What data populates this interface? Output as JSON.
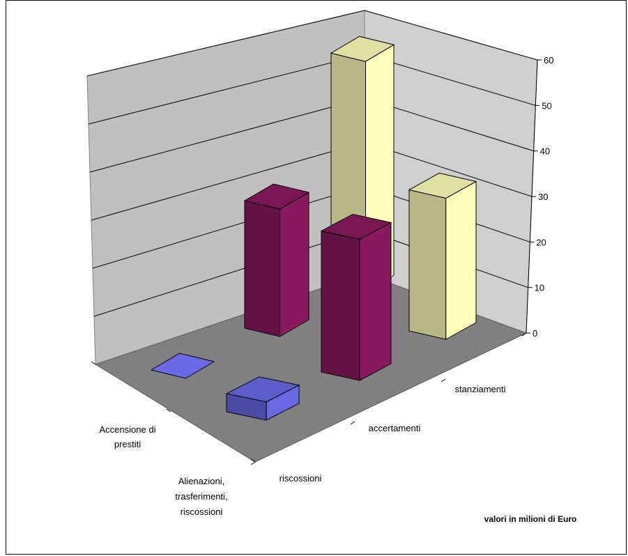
{
  "chart_data": {
    "type": "bar",
    "subtype": "3d-column",
    "title": "",
    "categories": [
      "riscossioni",
      "accertamenti",
      "stanziamenti"
    ],
    "series": [
      {
        "name": "Alienazioni, trasferimenti, riscossioni",
        "values": [
          4,
          31,
          31
        ],
        "color": "#6A6AE6"
      },
      {
        "name": "Accensione di prestiti",
        "values": [
          0,
          28,
          61
        ],
        "color": "#FFFFBB"
      }
    ],
    "series_colors": {
      "Alienazioni, trasferimenti, riscossioni": [
        "#6A6AE6",
        "#8A1A60",
        "#FFFFBB"
      ],
      "Accensione di prestiti": [
        "#6A6AE6",
        "#8A1A60",
        "#FFFFBB"
      ]
    },
    "y_ticks": [
      "0",
      "10",
      "20",
      "30",
      "40",
      "50",
      "60"
    ],
    "ylim": [
      0,
      60
    ],
    "grid": true,
    "note": "valori in milioni di Euro"
  }
}
